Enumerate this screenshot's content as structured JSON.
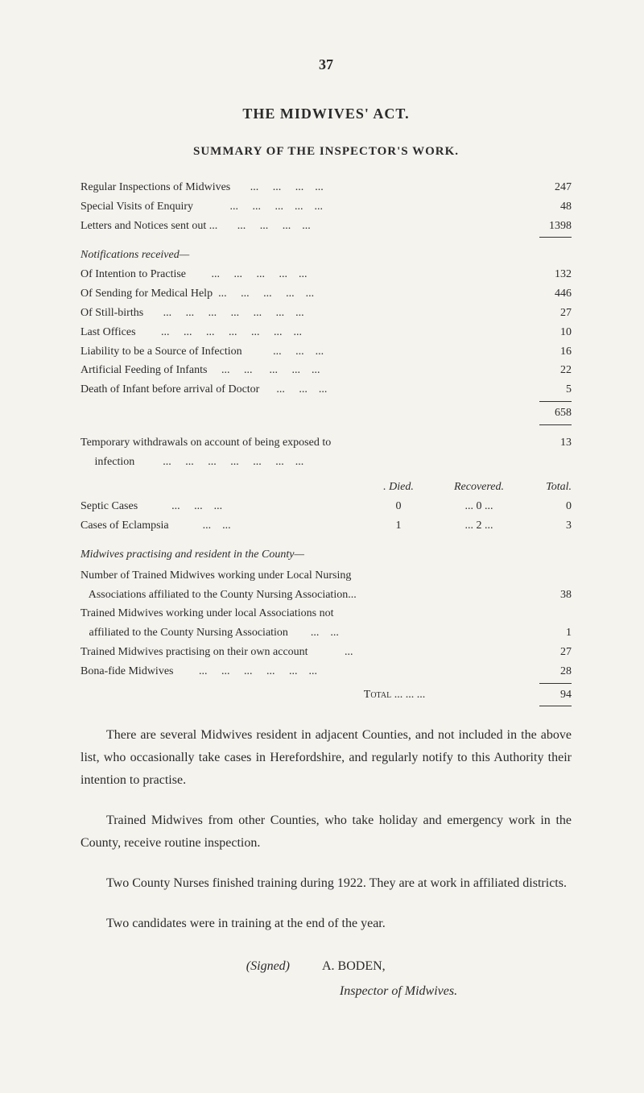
{
  "page_number": "37",
  "title": "THE MIDWIVES' ACT.",
  "subtitle": "SUMMARY OF THE INSPECTOR'S WORK.",
  "summary_rows": [
    {
      "label": "Regular Inspections of Midwives       ...     ...     ...    ...",
      "value": "247"
    },
    {
      "label": "Special Visits of Enquiry             ...     ...     ...    ...    ...",
      "value": "48"
    },
    {
      "label": "Letters and Notices sent out ...       ...     ...     ...    ...",
      "value": "1398"
    }
  ],
  "notifications_heading": "Notifications received—",
  "notification_rows": [
    {
      "label": "Of Intention to Practise         ...     ...     ...     ...    ...",
      "value": "132"
    },
    {
      "label": "Of Sending for Medical Help  ...     ...     ...     ...    ...",
      "value": "446"
    },
    {
      "label": "Of Still-births       ...     ...     ...     ...     ...     ...    ...",
      "value": "27"
    },
    {
      "label": "Last Offices         ...     ...     ...     ...     ...     ...    ...",
      "value": "10"
    },
    {
      "label": "Liability to be a Source of Infection           ...     ...    ...",
      "value": "16"
    },
    {
      "label": "Artificial Feeding of Infants     ...     ...      ...     ...    ...",
      "value": "22"
    },
    {
      "label": "Death of Infant before arrival of Doctor      ...     ...    ...",
      "value": "5"
    }
  ],
  "notifications_total": "658",
  "temporary_row": {
    "label": "Temporary withdrawals on account of being exposed to\n     infection          ...     ...     ...     ...     ...     ...    ...",
    "value": "13"
  },
  "cases_header": {
    "c1": "",
    "c2": ". Died.",
    "c3": "Recovered.",
    "c4": "Total."
  },
  "cases_rows": [
    {
      "c1": "Septic Cases            ...     ...    ...",
      "c2": "0",
      "c3": "...        0       ...",
      "c4": "0"
    },
    {
      "c1": "Cases of Eclampsia            ...    ...",
      "c2": "1",
      "c3": "...        2       ...",
      "c4": "3"
    }
  ],
  "midwives_heading": "Midwives practising and resident in the County—",
  "midwives_rows": [
    {
      "label": "Number of Trained Midwives working under Local Nursing",
      "value": ""
    },
    {
      "label": "   Associations affiliated to the County Nursing Association...",
      "value": "38"
    },
    {
      "label": "Trained Midwives working under local Associations not",
      "value": ""
    },
    {
      "label": "   affiliated to the County Nursing Association        ...    ...",
      "value": "1"
    },
    {
      "label": "Trained Midwives practising on their own account             ...",
      "value": "27"
    },
    {
      "label": "Bona-fide Midwives         ...     ...     ...     ...     ...    ...",
      "value": "28"
    }
  ],
  "midwives_total_label": "Total   ...     ...    ...",
  "midwives_total_value": "94",
  "paragraphs": [
    "There are several Midwives resident in adjacent Counties, and not included in the above list, who occasionally take cases in Herefordshire, and regularly notify to this Authority their intention to practise.",
    "Trained Midwives from other Counties, who take holiday and emergency work in the County, receive routine inspection.",
    "Two County Nurses finished training during 1922. They are at work in affiliated districts.",
    "Two candidates were in training at the end of the year."
  ],
  "signed_label": "(Signed)",
  "signed_name": "A. BODEN,",
  "inspector_line": "Inspector of Midwives."
}
